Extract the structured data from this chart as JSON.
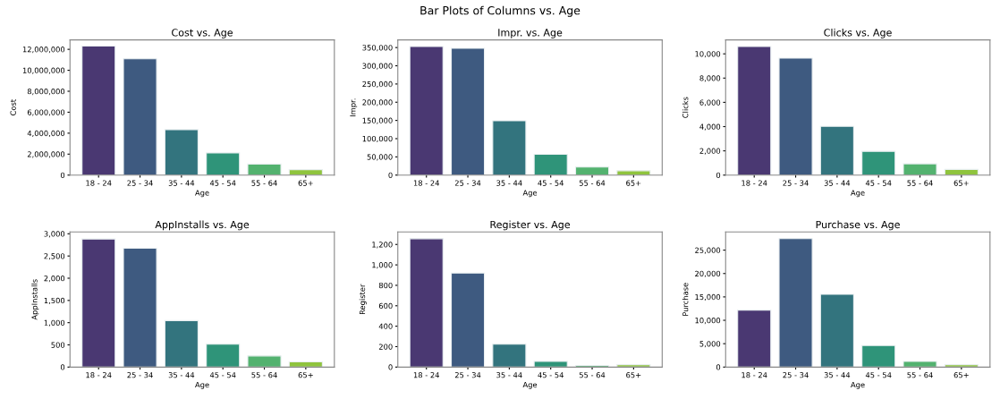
{
  "chart_data": [
    {
      "type": "bar",
      "title": "Cost vs. Age",
      "xlabel": "Age",
      "ylabel": "Cost",
      "annotations": [
        "Bar Plots of Columns vs. Age"
      ],
      "categories": [
        "18 - 24",
        "25 - 34",
        "35 - 44",
        "45 - 54",
        "55 - 64",
        "65+"
      ],
      "values": [
        12310000,
        11100000,
        4340000,
        2120000,
        1050000,
        520000
      ],
      "colors": [
        "#4a3872",
        "#3e5a80",
        "#33747e",
        "#2f9479",
        "#53b26f",
        "#8fc43d"
      ],
      "ylim": [
        0,
        12900000
      ],
      "yticks": [
        0,
        {
          "value": 2000000,
          "label": "2,000,000"
        },
        {
          "value": 4000000,
          "label": "4,000,000"
        },
        {
          "value": 6000000,
          "label": "6,000,000"
        },
        {
          "value": 8000000,
          "label": "8,000,000"
        },
        {
          "value": 10000000,
          "label": "10,000,000"
        },
        {
          "value": 12000000,
          "label": "12,000,000"
        }
      ]
    },
    {
      "type": "bar",
      "title": "Impr. vs. Age",
      "xlabel": "Age",
      "ylabel": "Impr.",
      "categories": [
        "18 - 24",
        "25 - 34",
        "35 - 44",
        "45 - 54",
        "55 - 64",
        "65+"
      ],
      "values": [
        353000,
        348000,
        149000,
        57000,
        22000,
        12000
      ],
      "colors": [
        "#4a3872",
        "#3e5a80",
        "#33747e",
        "#2f9479",
        "#53b26f",
        "#8fc43d"
      ],
      "ylim": [
        0,
        371000
      ],
      "yticks": [
        0,
        {
          "value": 50000,
          "label": "50,000"
        },
        {
          "value": 100000,
          "label": "100,000"
        },
        {
          "value": 150000,
          "label": "150,000"
        },
        {
          "value": 200000,
          "label": "200,000"
        },
        {
          "value": 250000,
          "label": "250,000"
        },
        {
          "value": 300000,
          "label": "300,000"
        },
        {
          "value": 350000,
          "label": "350,000"
        }
      ]
    },
    {
      "type": "bar",
      "title": "Clicks vs. Age",
      "xlabel": "Age",
      "ylabel": "Clicks",
      "categories": [
        "18 - 24",
        "25 - 34",
        "35 - 44",
        "45 - 54",
        "55 - 64",
        "65+"
      ],
      "values": [
        10600,
        9640,
        4020,
        1960,
        930,
        470
      ],
      "colors": [
        "#4a3872",
        "#3e5a80",
        "#33747e",
        "#2f9479",
        "#53b26f",
        "#8fc43d"
      ],
      "ylim": [
        0,
        11150
      ],
      "yticks": [
        0,
        {
          "value": 2000,
          "label": "2,000"
        },
        {
          "value": 4000,
          "label": "4,000"
        },
        {
          "value": 6000,
          "label": "6,000"
        },
        {
          "value": 8000,
          "label": "8,000"
        },
        {
          "value": 10000,
          "label": "10,000"
        }
      ]
    },
    {
      "type": "bar",
      "title": "AppInstalls vs. Age",
      "xlabel": "Age",
      "ylabel": "AppInstalls",
      "categories": [
        "18 - 24",
        "25 - 34",
        "35 - 44",
        "45 - 54",
        "55 - 64",
        "65+"
      ],
      "values": [
        2883,
        2675,
        1047,
        514,
        251,
        116
      ],
      "colors": [
        "#4a3872",
        "#3e5a80",
        "#33747e",
        "#2f9479",
        "#53b26f",
        "#8fc43d"
      ],
      "ylim": [
        0,
        3043
      ],
      "yticks": [
        0,
        500,
        {
          "value": 1000,
          "label": "1,000"
        },
        {
          "value": 1500,
          "label": "1,500"
        },
        {
          "value": 2000,
          "label": "2,000"
        },
        {
          "value": 2500,
          "label": "2,500"
        },
        {
          "value": 3000,
          "label": "3,000"
        }
      ]
    },
    {
      "type": "bar",
      "title": "Register vs. Age",
      "xlabel": "Age",
      "ylabel": "Register",
      "categories": [
        "18 - 24",
        "25 - 34",
        "35 - 44",
        "45 - 54",
        "55 - 64",
        "65+"
      ],
      "values": [
        1256,
        920,
        224,
        56,
        16,
        24
      ],
      "colors": [
        "#4a3872",
        "#3e5a80",
        "#33747e",
        "#2f9479",
        "#53b26f",
        "#8fc43d"
      ],
      "ylim": [
        0,
        1323
      ],
      "yticks": [
        0,
        200,
        400,
        600,
        800,
        {
          "value": 1000,
          "label": "1,000"
        },
        {
          "value": 1200,
          "label": "1,200"
        }
      ]
    },
    {
      "type": "bar",
      "title": "Purchase vs. Age",
      "xlabel": "Age",
      "ylabel": "Purchase",
      "categories": [
        "18 - 24",
        "25 - 34",
        "35 - 44",
        "45 - 54",
        "55 - 64",
        "65+"
      ],
      "values": [
        12180,
        27450,
        15560,
        4600,
        1220,
        520
      ],
      "colors": [
        "#4a3872",
        "#3e5a80",
        "#33747e",
        "#2f9479",
        "#53b26f",
        "#8fc43d"
      ],
      "ylim": [
        0,
        28900
      ],
      "yticks": [
        0,
        {
          "value": 5000,
          "label": "5,000"
        },
        {
          "value": 10000,
          "label": "10,000"
        },
        {
          "value": 15000,
          "label": "15,000"
        },
        {
          "value": 20000,
          "label": "20,000"
        },
        {
          "value": 25000,
          "label": "25,000"
        }
      ]
    }
  ]
}
